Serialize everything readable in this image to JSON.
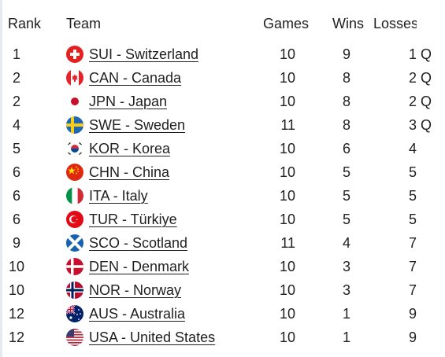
{
  "headers": {
    "rank": "Rank",
    "team": "Team",
    "games": "Games",
    "wins": "Wins",
    "losses": "Losses"
  },
  "rows": [
    {
      "rank": "1",
      "team": "SUI - Switzerland",
      "games": "10",
      "wins": "9",
      "losses": "1",
      "q": "Q",
      "flag": "switzerland-flag-icon"
    },
    {
      "rank": "2",
      "team": "CAN - Canada",
      "games": "10",
      "wins": "8",
      "losses": "2",
      "q": "Q",
      "flag": "canada-flag-icon"
    },
    {
      "rank": "2",
      "team": "JPN - Japan",
      "games": "10",
      "wins": "8",
      "losses": "2",
      "q": "Q",
      "flag": "japan-flag-icon"
    },
    {
      "rank": "4",
      "team": "SWE - Sweden",
      "games": "11",
      "wins": "8",
      "losses": "3",
      "q": "Q",
      "flag": "sweden-flag-icon"
    },
    {
      "rank": "5",
      "team": "KOR - Korea",
      "games": "10",
      "wins": "6",
      "losses": "4",
      "q": "",
      "flag": "korea-flag-icon"
    },
    {
      "rank": "6",
      "team": "CHN - China",
      "games": "10",
      "wins": "5",
      "losses": "5",
      "q": "",
      "flag": "china-flag-icon"
    },
    {
      "rank": "6",
      "team": "ITA - Italy",
      "games": "10",
      "wins": "5",
      "losses": "5",
      "q": "",
      "flag": "italy-flag-icon"
    },
    {
      "rank": "6",
      "team": "TUR - Türkiye",
      "games": "10",
      "wins": "5",
      "losses": "5",
      "q": "",
      "flag": "turkiye-flag-icon"
    },
    {
      "rank": "9",
      "team": "SCO - Scotland",
      "games": "11",
      "wins": "4",
      "losses": "7",
      "q": "",
      "flag": "scotland-flag-icon"
    },
    {
      "rank": "10",
      "team": "DEN - Denmark",
      "games": "10",
      "wins": "3",
      "losses": "7",
      "q": "",
      "flag": "denmark-flag-icon"
    },
    {
      "rank": "10",
      "team": "NOR - Norway",
      "games": "10",
      "wins": "3",
      "losses": "7",
      "q": "",
      "flag": "norway-flag-icon"
    },
    {
      "rank": "12",
      "team": "AUS - Australia",
      "games": "10",
      "wins": "1",
      "losses": "9",
      "q": "",
      "flag": "australia-flag-icon"
    },
    {
      "rank": "12",
      "team": "USA - United States",
      "games": "10",
      "wins": "1",
      "losses": "9",
      "q": "",
      "flag": "usa-flag-icon"
    }
  ]
}
